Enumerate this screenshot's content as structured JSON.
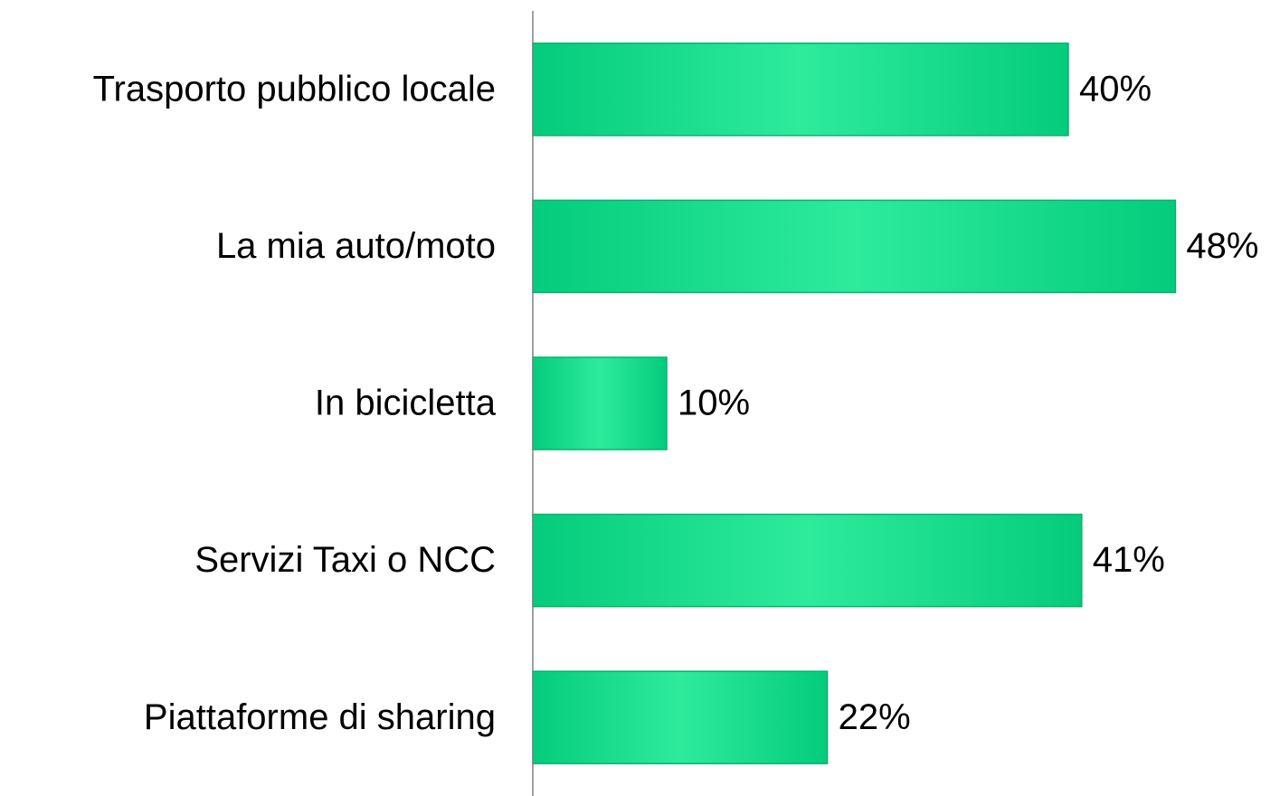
{
  "chart_data": {
    "type": "hbar",
    "categories": [
      "Trasporto pubblico locale",
      "La mia auto/moto",
      "In bicicletta",
      "Servizi Taxi o NCC",
      "Piattaforme di sharing"
    ],
    "values": [
      40,
      48,
      10,
      41,
      22
    ],
    "value_labels": [
      "40%",
      "48%",
      "10%",
      "41%",
      "22%"
    ],
    "color": "#04cc7c",
    "xlim": [
      0,
      50
    ]
  }
}
